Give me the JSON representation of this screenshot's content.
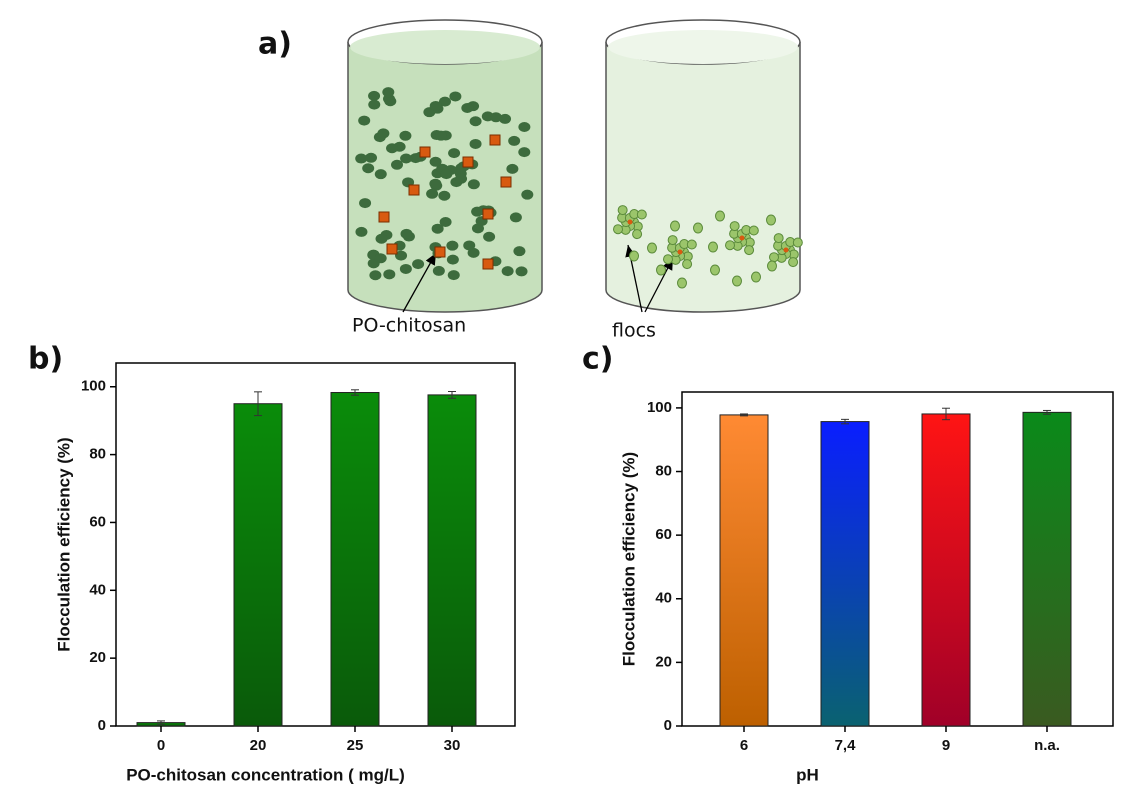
{
  "panel_labels": [
    "a)",
    "b)",
    "c)"
  ],
  "diagram": {
    "labels": [
      "PO-chitosan",
      "flocs"
    ]
  },
  "chart_data": [
    {
      "type": "bar",
      "categories": [
        "0",
        "20",
        "25",
        "30"
      ],
      "values": [
        1,
        95,
        98.3,
        97.6
      ],
      "errors": [
        0.5,
        3.5,
        0.8,
        1
      ],
      "colors": [
        "#0a8c0a",
        "#0a8c0a",
        "#0a8c0a",
        "#0a8c0a"
      ],
      "x_label": "PO-chitosan concentration ( mg/L)",
      "y_label": "Flocculation efficiency (%)",
      "ylim": [
        0,
        107
      ],
      "yticks": [
        0,
        20,
        40,
        60,
        80,
        100
      ]
    },
    {
      "type": "bar",
      "categories": [
        "6",
        "7,4",
        "9",
        "n.a."
      ],
      "values": [
        97.8,
        95.7,
        98.1,
        98.6
      ],
      "errors": [
        0.3,
        0.7,
        1.8,
        0.6
      ],
      "colors": [
        "#ff8a33",
        "#0a1eff",
        "#ff1414",
        "#0a8a1a"
      ],
      "x_label": "pH",
      "y_label": "Flocculation efficiency (%)",
      "ylim": [
        0,
        105
      ],
      "yticks": [
        0,
        20,
        40,
        60,
        80,
        100
      ]
    }
  ]
}
